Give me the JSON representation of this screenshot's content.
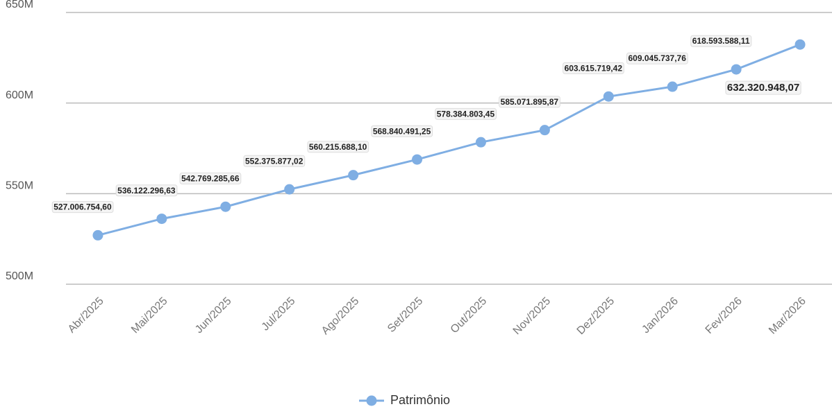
{
  "chart_data": {
    "type": "line",
    "categories": [
      "Abr/2025",
      "Mai/2025",
      "Jun/2025",
      "Jul/2025",
      "Ago/2025",
      "Set/2025",
      "Out/2025",
      "Nov/2025",
      "Dez/2025",
      "Jan/2026",
      "Fev/2026",
      "Mar/2026"
    ],
    "series": [
      {
        "name": "Patrimônio",
        "color": "#7faee3",
        "values": [
          527006754.6,
          536122296.63,
          542769285.66,
          552375877.02,
          560215688.1,
          568840491.25,
          578384803.45,
          585071895.87,
          603615719.42,
          609045737.76,
          618593588.11,
          632320948.07
        ],
        "value_labels": [
          "527.006.754,60",
          "536.122.296,63",
          "542.769.285,66",
          "552.375.877,02",
          "560.215.688,10",
          "568.840.491,25",
          "578.384.803,45",
          "585.071.895,87",
          "603.615.719,42",
          "609.045.737,76",
          "618.593.588,11",
          "632.320.948,07"
        ]
      }
    ],
    "ylim": [
      500000000,
      650000000
    ],
    "yticks": [
      {
        "value": 500000000,
        "label": "500M"
      },
      {
        "value": 550000000,
        "label": "550M"
      },
      {
        "value": 600000000,
        "label": "600M"
      },
      {
        "value": 650000000,
        "label": "650M"
      }
    ],
    "grid": true,
    "legend": "bottom"
  }
}
